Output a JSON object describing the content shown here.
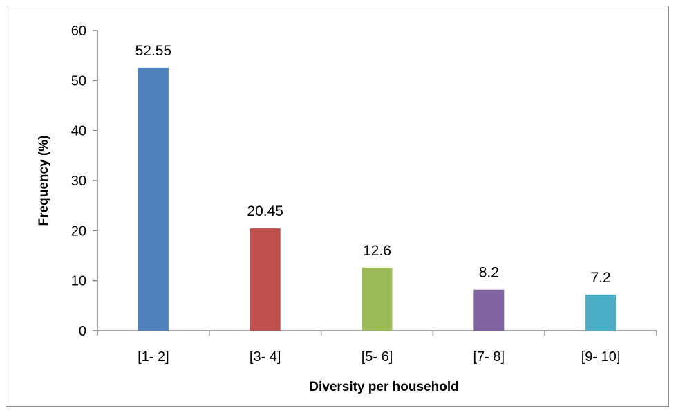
{
  "chart_data": {
    "type": "bar",
    "title": "",
    "xlabel": "Diversity per household",
    "ylabel": "Frequency (%)",
    "categories": [
      "[1- 2]",
      "[3- 4]",
      "[5- 6]",
      "[7- 8]",
      "[9- 10]"
    ],
    "values": [
      52.55,
      20.45,
      12.6,
      8.2,
      7.2
    ],
    "data_labels": [
      "52.55",
      "20.45",
      "12.6",
      "8.2",
      "7.2"
    ],
    "colors": [
      "#4f81bd",
      "#c0504d",
      "#9bbb59",
      "#8064a2",
      "#4bacc6"
    ],
    "ylim": [
      0,
      60
    ],
    "yticks": [
      0,
      10,
      20,
      30,
      40,
      50,
      60
    ],
    "grid": false,
    "legend": "none"
  }
}
